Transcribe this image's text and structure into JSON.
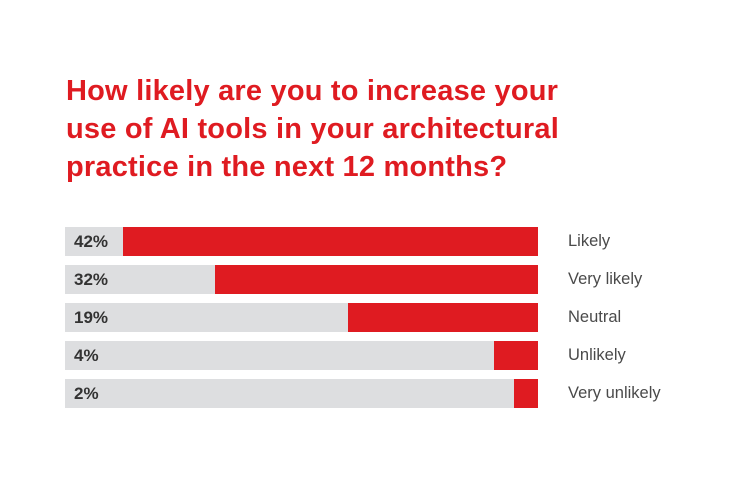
{
  "title": {
    "full": "How likely are you to increase your use of AI tools in your architectural practice in the next 12 months?",
    "lines": [
      "How likely are you to increase your",
      "use of AI tools in your architectural",
      "practice in the next 12 months?"
    ]
  },
  "colors": {
    "accent_red": "#DF1B21",
    "bar_track_gray": "#DDDEE0",
    "pct_text": "#333333",
    "category_text": "#4A4A4A",
    "background": "#FFFFFF"
  },
  "chart_data": {
    "type": "bar",
    "orientation": "horizontal",
    "title": "How likely are you to increase your use of AI tools in your architectural practice in the next 12 months?",
    "categories": [
      "Likely",
      "Very likely",
      "Neutral",
      "Unlikely",
      "Very unlikely"
    ],
    "values": [
      42,
      32,
      19,
      4,
      2
    ],
    "value_labels": [
      "42%",
      "32%",
      "19%",
      "4%",
      "2%"
    ],
    "unit": "%",
    "xlabel": "",
    "ylabel": "",
    "grid": false,
    "legend": "none",
    "bar_anchor": "right",
    "value_label_position": "inside-left",
    "category_label_position": "right-of-bar",
    "fill_pct_of_track": [
      87.7,
      68.3,
      40.2,
      9.3,
      5.1
    ]
  }
}
